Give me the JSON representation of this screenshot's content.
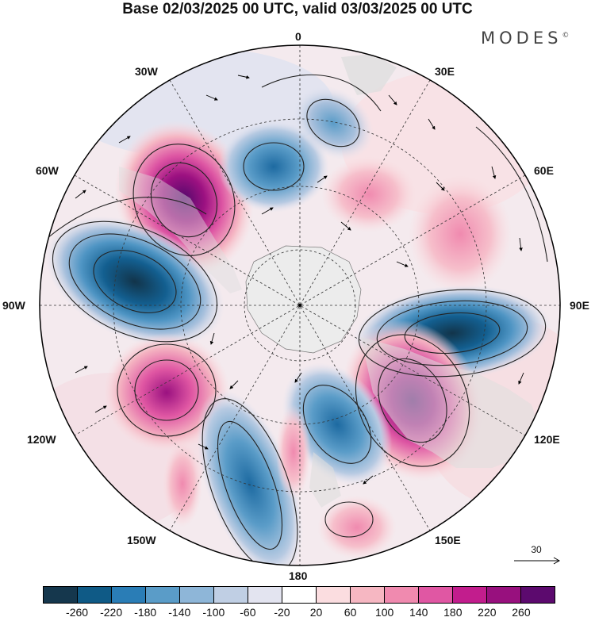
{
  "title": "Base 02/03/2025 00 UTC, valid 03/03/2025 00 UTC",
  "brand": "MODES",
  "brand_mark": "©",
  "lon_labels": {
    "l0": "0",
    "l30e": "30E",
    "l60e": "60E",
    "l90e": "90E",
    "l120e": "120E",
    "l150e": "150E",
    "l180": "180",
    "l150w": "150W",
    "l120w": "120W",
    "l90w": "90W",
    "l60w": "60W",
    "l30w": "30W"
  },
  "reference_vector": {
    "value": "30"
  },
  "colorbar": {
    "colors": [
      "#15374d",
      "#0f5a86",
      "#2a7db6",
      "#5a9cc8",
      "#8eb6d8",
      "#c0cfe4",
      "#e3e4f0",
      "#ffffff",
      "#fbdde0",
      "#f6b7c2",
      "#f08aaf",
      "#e057a3",
      "#c21d8d",
      "#98107e",
      "#5c0a6e"
    ],
    "labels": [
      "-260",
      "-220",
      "-180",
      "-140",
      "-100",
      "-60",
      "-20",
      "20",
      "60",
      "100",
      "140",
      "180",
      "220",
      "260"
    ]
  },
  "map": {
    "projection": "south-polar-stereographic",
    "field_colors": {
      "land": "#dedede",
      "antarctica": "#ececec"
    }
  }
}
